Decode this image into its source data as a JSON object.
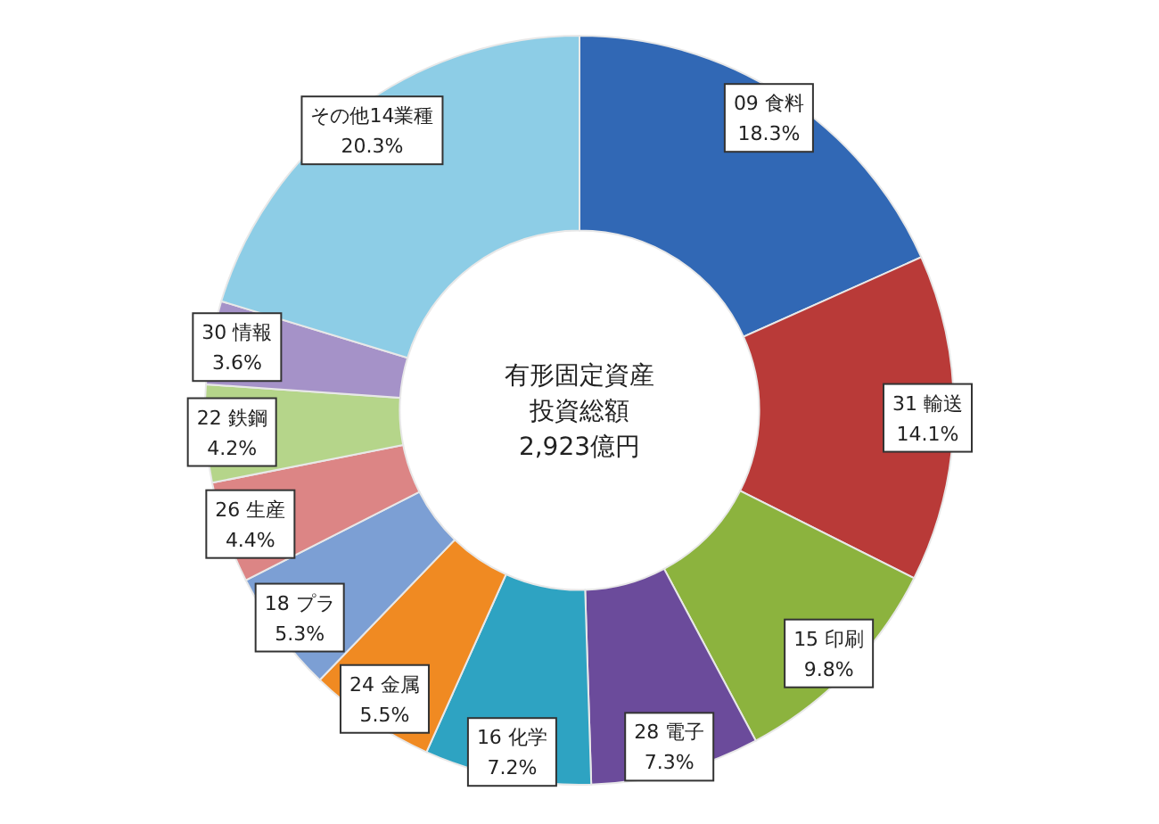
{
  "chart_data": {
    "type": "donut",
    "title": "有形固定資産",
    "subtitle": "投資総額",
    "annotations": [
      "2,923億円"
    ],
    "categories": [
      "09 食料",
      "31 輸送",
      "15 印刷",
      "28 電子",
      "16 化学",
      "24 金属",
      "18 プラ",
      "26 生産",
      "22 鉄鋼",
      "30 情報",
      "その他14業種"
    ],
    "values": [
      18.3,
      14.1,
      9.8,
      7.3,
      7.2,
      5.5,
      5.3,
      4.4,
      4.2,
      3.6,
      20.3
    ],
    "value_labels": [
      "18.3%",
      "14.1%",
      "9.8%",
      "7.3%",
      "7.2%",
      "5.5%",
      "5.3%",
      "4.4%",
      "4.2%",
      "3.6%",
      "20.3%"
    ],
    "colors": [
      "#3168b5",
      "#b93a38",
      "#8cb33e",
      "#6b4b9b",
      "#2ea3c2",
      "#f08a22",
      "#7c9fd4",
      "#dc8585",
      "#b5d58a",
      "#a592c8",
      "#8dcde6"
    ]
  }
}
